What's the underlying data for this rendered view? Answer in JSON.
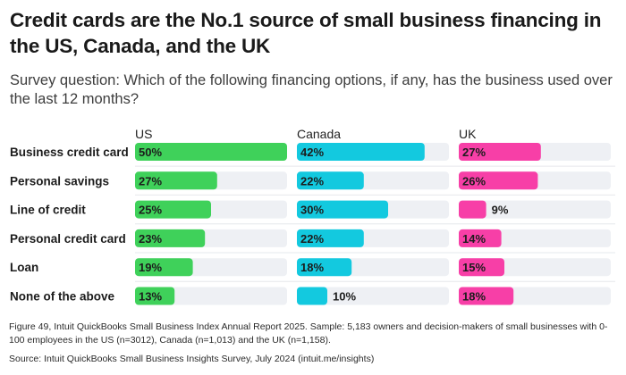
{
  "title": "Credit cards are the No.1 source of small business financing in the US, Canada, and the UK",
  "subtitle": "Survey question: Which of the following financing options, if any, has the business used over the last 12 months?",
  "footnote": "Figure 49, Intuit QuickBooks Small Business Index Annual Report 2025. Sample: 5,183 owners and decision-makers of small businesses with 0-100 employees in the US (n=3012), Canada (n=1,013) and the UK (n=1,158).",
  "source": "Source: Intuit QuickBooks Small Business Insights Survey, July 2024 (intuit.me/insights)",
  "chart_data": {
    "type": "bar",
    "orientation": "horizontal",
    "categories": [
      "Business credit card",
      "Personal savings",
      "Line of credit",
      "Personal credit card",
      "Loan",
      "None of the above"
    ],
    "series": [
      {
        "name": "US",
        "color": "#3fd15a",
        "values": [
          50,
          27,
          25,
          23,
          19,
          13
        ],
        "labels": [
          "50%",
          "27%",
          "25%",
          "23%",
          "19%",
          "13%"
        ]
      },
      {
        "name": "Canada",
        "color": "#13c9df",
        "values": [
          42,
          22,
          30,
          22,
          18,
          10
        ],
        "labels": [
          "42%",
          "22%",
          "30%",
          "22%",
          "18%",
          "10%"
        ]
      },
      {
        "name": "UK",
        "color": "#f73fa7",
        "values": [
          27,
          26,
          9,
          14,
          15,
          18
        ],
        "labels": [
          "27%",
          "26%",
          "9%",
          "14%",
          "15%",
          "18%"
        ]
      }
    ],
    "xlim": [
      0,
      50
    ],
    "track_color": "#eef0f4",
    "grid": false
  }
}
